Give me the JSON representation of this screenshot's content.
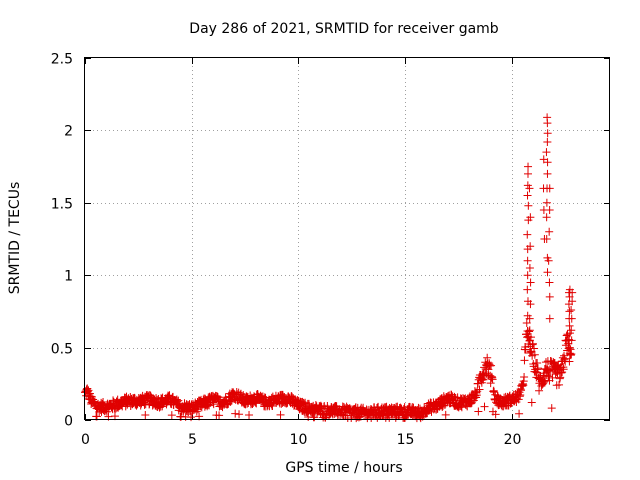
{
  "chart_data": {
    "type": "scatter",
    "title": "Day 286 of 2021, SRMTID for receiver gamb",
    "xlabel": "GPS time / hours",
    "ylabel": "SRMTID / TECUs",
    "xlim": [
      0,
      24.6
    ],
    "ylim": [
      0,
      2.5
    ],
    "x_ticks": [
      {
        "value": 0,
        "label": "0"
      },
      {
        "value": 5,
        "label": "5"
      },
      {
        "value": 10,
        "label": "10"
      },
      {
        "value": 15,
        "label": "15"
      },
      {
        "value": 20,
        "label": "20"
      }
    ],
    "y_ticks": [
      {
        "value": 0,
        "label": "0"
      },
      {
        "value": 0.5,
        "label": "0.5"
      },
      {
        "value": 1,
        "label": "1"
      },
      {
        "value": 1.5,
        "label": "1.5"
      },
      {
        "value": 2,
        "label": "2"
      },
      {
        "value": 2.5,
        "label": "2.5"
      }
    ],
    "grid": true,
    "marker": "+",
    "marker_color": "#e00000",
    "series": [
      {
        "name": "SRMTID",
        "profile": [
          [
            0.0,
            0.18
          ],
          [
            0.1,
            0.2
          ],
          [
            0.3,
            0.13
          ],
          [
            0.6,
            0.09
          ],
          [
            1.0,
            0.09
          ],
          [
            1.5,
            0.11
          ],
          [
            2.0,
            0.13
          ],
          [
            2.5,
            0.13
          ],
          [
            3.0,
            0.14
          ],
          [
            3.5,
            0.12
          ],
          [
            4.0,
            0.14
          ],
          [
            4.5,
            0.09
          ],
          [
            5.0,
            0.08
          ],
          [
            5.5,
            0.11
          ],
          [
            6.0,
            0.14
          ],
          [
            6.5,
            0.12
          ],
          [
            7.0,
            0.18
          ],
          [
            7.5,
            0.13
          ],
          [
            8.0,
            0.15
          ],
          [
            8.5,
            0.12
          ],
          [
            9.0,
            0.14
          ],
          [
            9.5,
            0.15
          ],
          [
            10.0,
            0.1
          ],
          [
            10.5,
            0.08
          ],
          [
            11.0,
            0.07
          ],
          [
            12.0,
            0.06
          ],
          [
            13.0,
            0.05
          ],
          [
            14.0,
            0.06
          ],
          [
            15.0,
            0.06
          ],
          [
            15.8,
            0.05
          ],
          [
            16.0,
            0.08
          ],
          [
            16.5,
            0.1
          ],
          [
            17.0,
            0.15
          ],
          [
            17.5,
            0.12
          ],
          [
            18.0,
            0.13
          ],
          [
            18.3,
            0.17
          ],
          [
            18.6,
            0.32
          ],
          [
            18.8,
            0.4
          ],
          [
            19.0,
            0.33
          ],
          [
            19.2,
            0.16
          ],
          [
            19.5,
            0.12
          ],
          [
            20.0,
            0.14
          ],
          [
            20.3,
            0.16
          ],
          [
            20.5,
            0.22
          ],
          [
            20.7,
            0.6
          ],
          [
            21.0,
            0.45
          ],
          [
            21.3,
            0.25
          ],
          [
            21.6,
            0.35
          ],
          [
            22.0,
            0.32
          ],
          [
            22.3,
            0.3
          ],
          [
            22.6,
            0.55
          ],
          [
            22.8,
            0.4
          ]
        ],
        "sampling_hours": 0.018,
        "noise_amplitude": 0.035,
        "spikes": [
          {
            "x": 20.75,
            "values": [
              1.75,
              1.7,
              1.62,
              1.55,
              1.48,
              1.38,
              1.28,
              1.18,
              1.1,
              1.0,
              0.9,
              0.82,
              0.72
            ]
          },
          {
            "x": 20.85,
            "values": [
              1.6,
              1.4,
              1.2,
              1.05,
              0.95,
              0.8,
              0.7,
              0.62,
              0.55
            ]
          },
          {
            "x": 21.5,
            "values": [
              1.25,
              1.45,
              1.6,
              1.8
            ]
          },
          {
            "x": 21.65,
            "values": [
              2.09,
              2.05,
              1.98,
              1.92,
              1.85,
              1.78,
              1.7,
              1.6,
              1.5,
              1.4,
              1.25,
              1.12,
              1.02
            ]
          },
          {
            "x": 21.75,
            "values": [
              1.6,
              1.45,
              1.3,
              1.1,
              0.95,
              0.85,
              0.7
            ]
          },
          {
            "x": 22.7,
            "values": [
              0.9,
              0.88,
              0.85,
              0.8,
              0.75,
              0.7,
              0.65,
              0.6,
              0.55,
              0.5
            ]
          },
          {
            "x": 22.8,
            "values": [
              0.88,
              0.82,
              0.76,
              0.7,
              0.62,
              0.55
            ]
          }
        ]
      }
    ]
  }
}
